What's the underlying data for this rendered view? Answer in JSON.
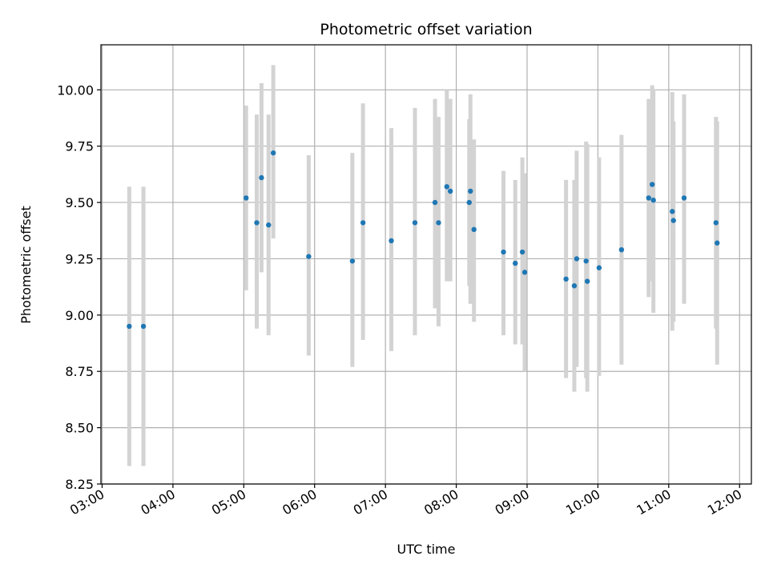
{
  "chart_data": {
    "type": "scatter",
    "title": "Photometric offset variation",
    "xlabel": "UTC time",
    "ylabel": "Photometric offset",
    "xlim": [
      "02:59",
      "12:10"
    ],
    "ylim": [
      8.25,
      10.2
    ],
    "x_ticks": [
      "03:00",
      "04:00",
      "05:00",
      "06:00",
      "07:00",
      "08:00",
      "09:00",
      "10:00",
      "11:00",
      "12:00"
    ],
    "y_ticks": [
      8.25,
      8.5,
      8.75,
      9.0,
      9.25,
      9.5,
      9.75,
      10.0
    ],
    "y_tick_labels": [
      "8.25",
      "8.50",
      "8.75",
      "9.00",
      "9.25",
      "9.50",
      "9.75",
      "10.00"
    ],
    "grid": true,
    "colors": {
      "point": "#1f77b4",
      "errorbar": "#d3d3d3",
      "grid": "#b0b0b0"
    },
    "points": [
      {
        "x": "03:23",
        "y": 8.95,
        "lo": 8.33,
        "hi": 9.57
      },
      {
        "x": "03:35",
        "y": 8.95,
        "lo": 8.33,
        "hi": 9.57
      },
      {
        "x": "05:02",
        "y": 9.52,
        "lo": 9.11,
        "hi": 9.93
      },
      {
        "x": "05:11",
        "y": 9.41,
        "lo": 8.94,
        "hi": 9.89
      },
      {
        "x": "05:15",
        "y": 9.61,
        "lo": 9.19,
        "hi": 10.03
      },
      {
        "x": "05:21",
        "y": 9.4,
        "lo": 8.91,
        "hi": 9.89
      },
      {
        "x": "05:25",
        "y": 9.72,
        "lo": 9.34,
        "hi": 10.11
      },
      {
        "x": "05:55",
        "y": 9.26,
        "lo": 8.82,
        "hi": 9.71
      },
      {
        "x": "06:32",
        "y": 9.24,
        "lo": 8.77,
        "hi": 9.72
      },
      {
        "x": "06:41",
        "y": 9.41,
        "lo": 8.89,
        "hi": 9.94
      },
      {
        "x": "07:05",
        "y": 9.33,
        "lo": 8.84,
        "hi": 9.83
      },
      {
        "x": "07:25",
        "y": 9.41,
        "lo": 8.91,
        "hi": 9.92
      },
      {
        "x": "07:42",
        "y": 9.5,
        "lo": 9.03,
        "hi": 9.96
      },
      {
        "x": "07:45",
        "y": 9.41,
        "lo": 8.95,
        "hi": 9.88
      },
      {
        "x": "07:52",
        "y": 9.57,
        "lo": 9.15,
        "hi": 10.0
      },
      {
        "x": "07:55",
        "y": 9.55,
        "lo": 9.15,
        "hi": 9.96
      },
      {
        "x": "08:11",
        "y": 9.5,
        "lo": 9.13,
        "hi": 9.87
      },
      {
        "x": "08:12",
        "y": 9.55,
        "lo": 9.05,
        "hi": 9.98
      },
      {
        "x": "08:15",
        "y": 9.38,
        "lo": 8.97,
        "hi": 9.78
      },
      {
        "x": "08:40",
        "y": 9.28,
        "lo": 8.91,
        "hi": 9.64
      },
      {
        "x": "08:50",
        "y": 9.23,
        "lo": 8.87,
        "hi": 9.6
      },
      {
        "x": "08:56",
        "y": 9.28,
        "lo": 8.87,
        "hi": 9.7
      },
      {
        "x": "08:58",
        "y": 9.19,
        "lo": 8.75,
        "hi": 9.63
      },
      {
        "x": "09:33",
        "y": 9.16,
        "lo": 8.72,
        "hi": 9.6
      },
      {
        "x": "09:40",
        "y": 9.13,
        "lo": 8.66,
        "hi": 9.6
      },
      {
        "x": "09:42",
        "y": 9.25,
        "lo": 8.77,
        "hi": 9.73
      },
      {
        "x": "09:50",
        "y": 9.24,
        "lo": 8.72,
        "hi": 9.77
      },
      {
        "x": "09:51",
        "y": 9.15,
        "lo": 8.66,
        "hi": 9.76
      },
      {
        "x": "10:01",
        "y": 9.21,
        "lo": 8.73,
        "hi": 9.7
      },
      {
        "x": "10:20",
        "y": 9.29,
        "lo": 8.78,
        "hi": 9.8
      },
      {
        "x": "10:43",
        "y": 9.52,
        "lo": 9.08,
        "hi": 9.96
      },
      {
        "x": "10:46",
        "y": 9.58,
        "lo": 9.15,
        "hi": 10.02
      },
      {
        "x": "10:47",
        "y": 9.51,
        "lo": 9.01,
        "hi": 10.0
      },
      {
        "x": "11:03",
        "y": 9.46,
        "lo": 8.93,
        "hi": 9.99
      },
      {
        "x": "11:04",
        "y": 9.42,
        "lo": 8.97,
        "hi": 9.86
      },
      {
        "x": "11:13",
        "y": 9.52,
        "lo": 9.05,
        "hi": 9.98
      },
      {
        "x": "11:40",
        "y": 9.41,
        "lo": 8.94,
        "hi": 9.88
      },
      {
        "x": "11:41",
        "y": 9.32,
        "lo": 8.78,
        "hi": 9.86
      }
    ]
  }
}
